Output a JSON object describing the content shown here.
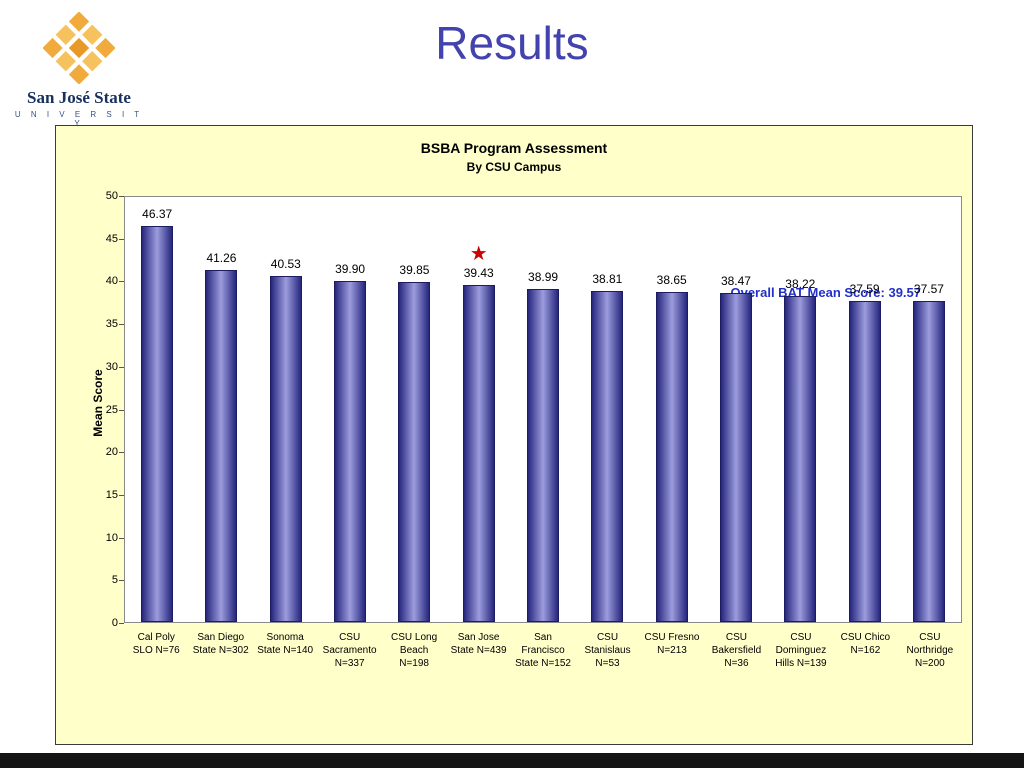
{
  "slide": {
    "title": "Results",
    "logo": {
      "name": "San José State",
      "subtitle": "U N I V E R S I T Y"
    }
  },
  "chart_data": {
    "type": "bar",
    "title": "BSBA Program Assessment",
    "subtitle": "By CSU Campus",
    "ylabel": "Mean Score",
    "ylim": [
      0,
      50
    ],
    "yticks": [
      0,
      5,
      10,
      15,
      20,
      25,
      30,
      35,
      40,
      45,
      50
    ],
    "grid": false,
    "legend_position": "none",
    "annotation": "Overall BAT Mean Score: 39.57",
    "categories": [
      "Cal Poly\nSLO N=76",
      "San Diego\nState N=302",
      "Sonoma\nState N=140",
      "CSU\nSacramento\nN=337",
      "CSU Long\nBeach\nN=198",
      "San Jose\nState N=439",
      "San\nFrancisco\nState  N=152",
      "CSU\nStanislaus\nN=53",
      "CSU  Fresno\nN=213",
      "CSU\nBakersfield\nN=36",
      "CSU\nDominguez\nHills N=139",
      "CSU Chico\nN=162",
      "CSU\nNorthridge\nN=200"
    ],
    "values": [
      46.37,
      41.26,
      40.53,
      39.9,
      39.85,
      39.43,
      38.99,
      38.81,
      38.65,
      38.47,
      38.22,
      37.59,
      37.57
    ],
    "value_labels": [
      "46.37",
      "41.26",
      "40.53",
      "39.90",
      "39.85",
      "39.43",
      "38.99",
      "38.81",
      "38.65",
      "38.47",
      "38.22",
      "37.59",
      "37.57"
    ],
    "highlight_index": 5,
    "highlight_marker": "star",
    "colors": {
      "bar_edge": "#26267e",
      "bar_center": "#9c9cdd",
      "annotation": "#2230c8",
      "star": "#cc0000",
      "panel_bg": "#ffffca",
      "plot_bg": "#ffffff",
      "title": "#4343ae"
    }
  }
}
